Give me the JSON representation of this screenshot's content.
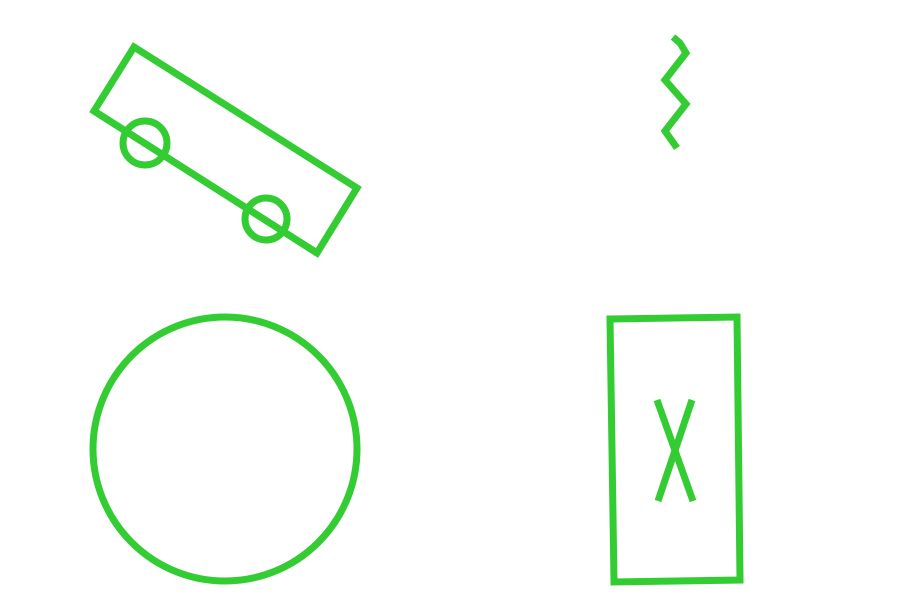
{
  "canvas": {
    "background": "#ffffff",
    "stroke_color": "#33cc33"
  },
  "shapes": [
    {
      "name": "tilted-rectangle-with-circles",
      "type": "rectangle",
      "contains": [
        "line",
        "circle",
        "circle"
      ]
    },
    {
      "name": "zigzag-line",
      "type": "polyline"
    },
    {
      "name": "large-circle",
      "type": "circle"
    },
    {
      "name": "rectangle-with-cross",
      "type": "rectangle",
      "contains": [
        "cross"
      ]
    }
  ]
}
